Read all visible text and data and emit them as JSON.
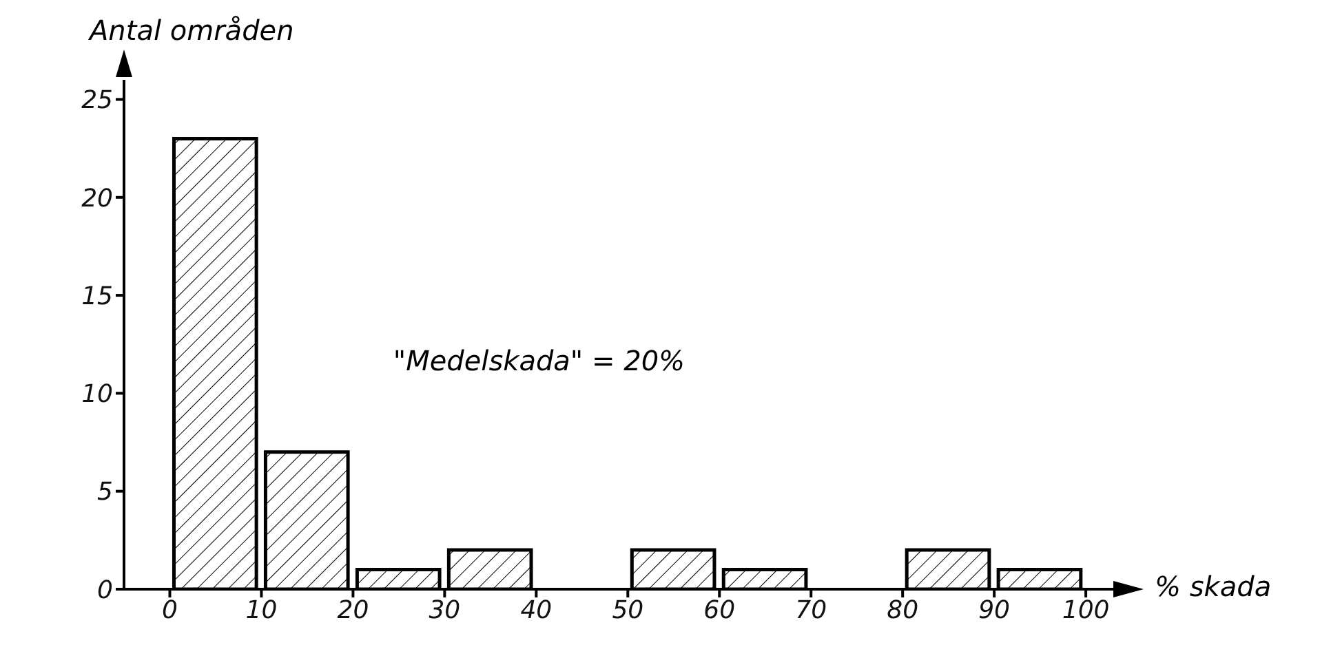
{
  "chart_data": {
    "type": "histogram",
    "xlabel": "% skada",
    "ylabel": "Antal områden",
    "annotations": [
      "\"Medelskada\" = 20%"
    ],
    "bins": [
      0,
      10,
      20,
      30,
      40,
      50,
      60,
      70,
      80,
      90,
      100
    ],
    "values": [
      23,
      7,
      1,
      2,
      0,
      2,
      1,
      0,
      2,
      1
    ],
    "color": "#000000",
    "xlim": [
      -5,
      103
    ],
    "xticks": [
      0,
      10,
      20,
      30,
      40,
      50,
      60,
      70,
      80,
      90,
      100
    ],
    "ylim": [
      0,
      26
    ],
    "yticks": [
      0,
      5,
      10,
      15,
      20,
      25
    ],
    "grid": false,
    "legend": false
  }
}
